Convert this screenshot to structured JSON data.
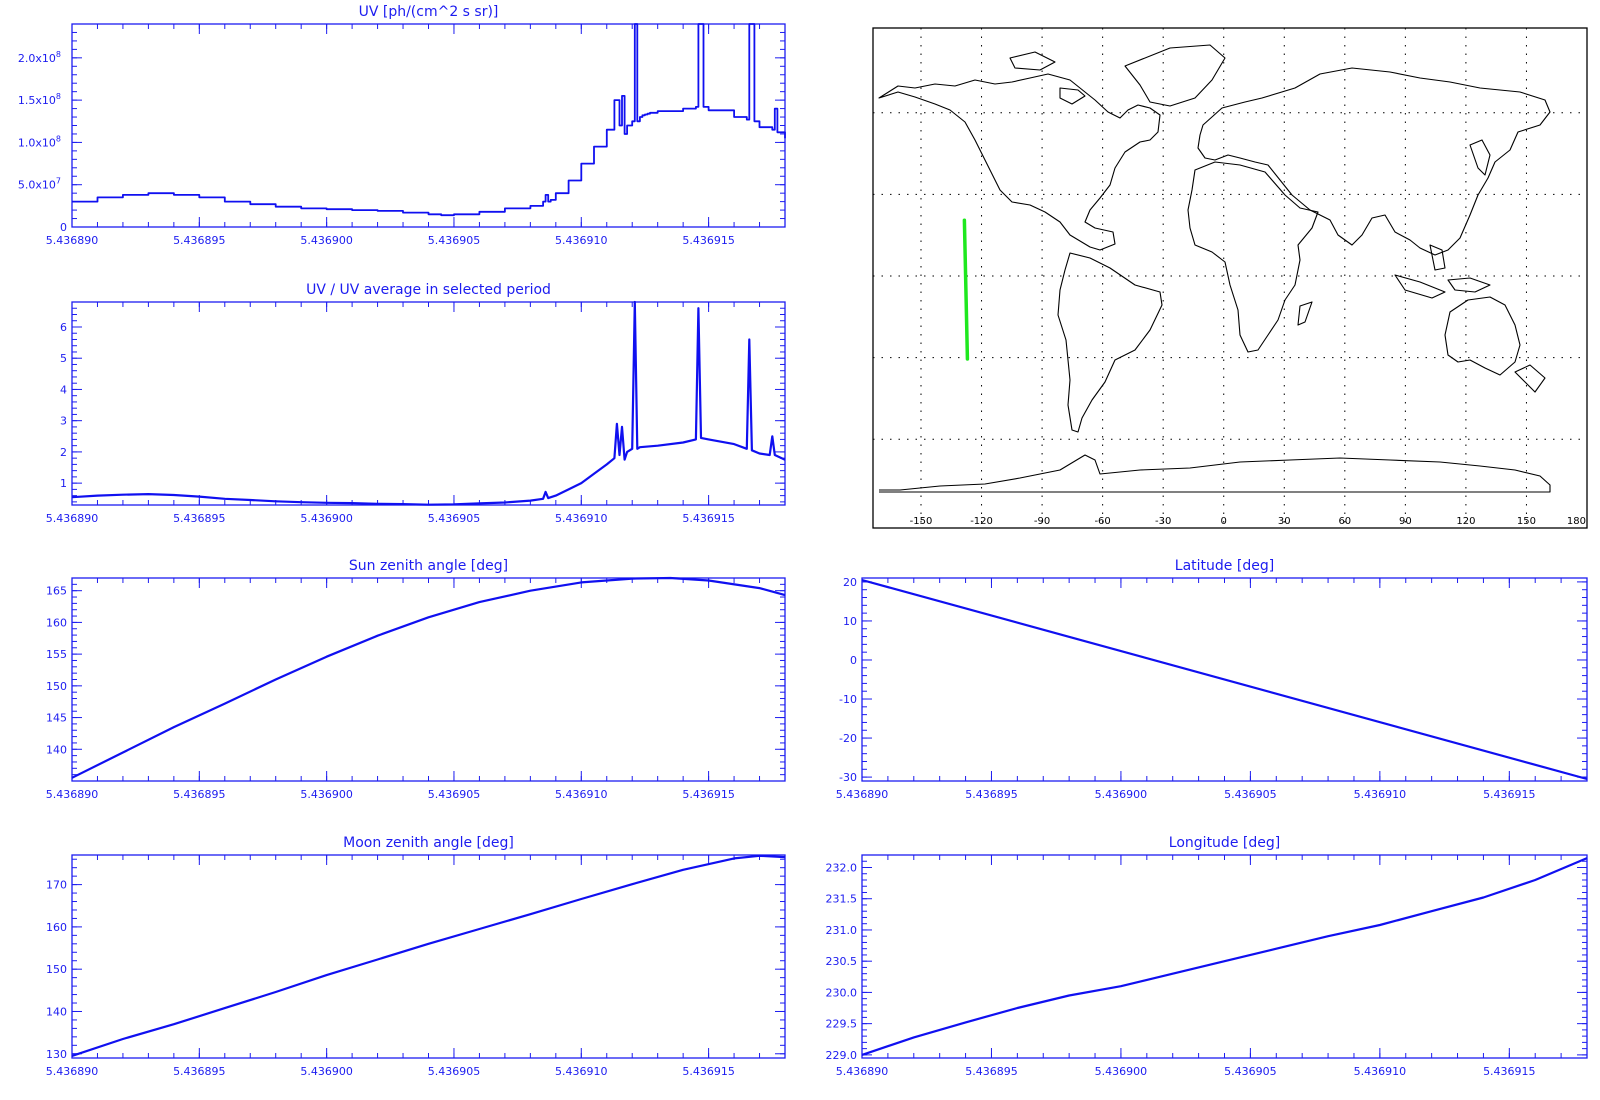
{
  "colors": {
    "axis": "#1c1cf0",
    "line": "#1010f0",
    "track": "#1ee81e",
    "coast": "#000000"
  },
  "chart_data": [
    {
      "id": "uv",
      "type": "line",
      "title": "UV [ph/(cm^2 s sr)]",
      "xlabel": "",
      "ylabel": "",
      "xlim": [
        5.43689,
        5.436918
      ],
      "ylim": [
        0,
        240000000
      ],
      "x_ticks": [
        "5.436890",
        "5.436895",
        "5.436900",
        "5.436905",
        "5.436910",
        "5.436915"
      ],
      "y_ticks": [
        {
          "value": 0,
          "mant": "0",
          "exp": ""
        },
        {
          "value": 50000000,
          "mant": "5.0x10",
          "exp": "7"
        },
        {
          "value": 100000000,
          "mant": "1.0x10",
          "exp": "8"
        },
        {
          "value": 150000000,
          "mant": "1.5x10",
          "exp": "8"
        },
        {
          "value": 200000000,
          "mant": "2.0x10",
          "exp": "8"
        }
      ],
      "step": true,
      "series": [
        {
          "x": [
            5.43689,
            5.436891,
            5.436892,
            5.436893,
            5.436894,
            5.436895,
            5.436896,
            5.436897,
            5.436898,
            5.436899,
            5.4369,
            5.436901,
            5.436902,
            5.436903,
            5.436904,
            5.4369045,
            5.436905,
            5.436906,
            5.436907,
            5.436908,
            5.4369085,
            5.4369086,
            5.4369087,
            5.4369088,
            5.436909,
            5.4369095,
            5.43691,
            5.4369105,
            5.436911,
            5.4369113,
            5.4369115,
            5.4369116,
            5.4369117,
            5.4369118,
            5.436912,
            5.4369121,
            5.4369122,
            5.4369123,
            5.4369124,
            5.4369125,
            5.4369126,
            5.4369127,
            5.436913,
            5.436914,
            5.4369145,
            5.4369146,
            5.4369147,
            5.4369148,
            5.436915,
            5.436916,
            5.4369165,
            5.4369166,
            5.4369167,
            5.4369168,
            5.436917,
            5.4369175,
            5.4369176,
            5.4369177,
            5.436918
          ],
          "y": [
            30000000,
            35000000,
            38000000,
            40000000,
            38000000,
            35000000,
            30000000,
            27000000,
            24000000,
            22000000,
            21000000,
            20000000,
            19000000,
            17000000,
            15000000,
            14000000,
            15000000,
            18000000,
            22000000,
            25000000,
            30000000,
            38000000,
            30000000,
            32000000,
            40000000,
            55000000,
            75000000,
            95000000,
            115000000,
            150000000,
            120000000,
            155000000,
            110000000,
            120000000,
            125000000,
            240000000,
            125000000,
            130000000,
            132000000,
            133000000,
            134000000,
            135000000,
            137000000,
            140000000,
            142000000,
            240000000,
            240000000,
            142000000,
            138000000,
            130000000,
            127000000,
            240000000,
            240000000,
            125000000,
            118000000,
            115000000,
            140000000,
            112000000,
            105000000
          ]
        }
      ]
    },
    {
      "id": "ratio",
      "type": "line",
      "title": "UV / UV average in selected period",
      "xlabel": "",
      "ylabel": "",
      "xlim": [
        5.43689,
        5.436918
      ],
      "ylim": [
        0.3,
        6.8
      ],
      "x_ticks": [
        "5.436890",
        "5.436895",
        "5.436900",
        "5.436905",
        "5.436910",
        "5.436915"
      ],
      "y_ticks": [
        {
          "value": 1,
          "mant": "1",
          "exp": ""
        },
        {
          "value": 2,
          "mant": "2",
          "exp": ""
        },
        {
          "value": 3,
          "mant": "3",
          "exp": ""
        },
        {
          "value": 4,
          "mant": "4",
          "exp": ""
        },
        {
          "value": 5,
          "mant": "5",
          "exp": ""
        },
        {
          "value": 6,
          "mant": "6",
          "exp": ""
        }
      ],
      "step": false,
      "series": [
        {
          "x": [
            5.43689,
            5.436891,
            5.436892,
            5.436893,
            5.436894,
            5.436895,
            5.436896,
            5.436897,
            5.436898,
            5.436899,
            5.4369,
            5.436901,
            5.436902,
            5.436903,
            5.436904,
            5.436905,
            5.436906,
            5.436907,
            5.436908,
            5.4369085,
            5.4369086,
            5.4369087,
            5.436909,
            5.4369095,
            5.43691,
            5.4369105,
            5.436911,
            5.4369113,
            5.4369114,
            5.4369115,
            5.4369116,
            5.4369117,
            5.4369118,
            5.436912,
            5.4369121,
            5.4369122,
            5.4369123,
            5.436913,
            5.436914,
            5.4369145,
            5.4369146,
            5.4369147,
            5.436915,
            5.436916,
            5.4369165,
            5.4369166,
            5.4369167,
            5.436917,
            5.4369174,
            5.4369175,
            5.4369176,
            5.436918
          ],
          "y": [
            0.55,
            0.6,
            0.63,
            0.65,
            0.62,
            0.57,
            0.5,
            0.46,
            0.42,
            0.39,
            0.37,
            0.36,
            0.34,
            0.33,
            0.31,
            0.32,
            0.35,
            0.38,
            0.44,
            0.5,
            0.72,
            0.52,
            0.6,
            0.8,
            1.0,
            1.3,
            1.6,
            1.8,
            2.9,
            1.9,
            2.8,
            1.75,
            2.0,
            2.1,
            6.8,
            2.1,
            2.15,
            2.2,
            2.3,
            2.4,
            6.6,
            2.45,
            2.4,
            2.25,
            2.1,
            5.6,
            2.05,
            1.95,
            1.9,
            2.5,
            1.9,
            1.75
          ]
        }
      ]
    },
    {
      "id": "sza",
      "type": "line",
      "title": "Sun zenith angle [deg]",
      "xlabel": "",
      "ylabel": "",
      "xlim": [
        5.43689,
        5.436918
      ],
      "ylim": [
        135,
        167
      ],
      "x_ticks": [
        "5.436890",
        "5.436895",
        "5.436900",
        "5.436905",
        "5.436910",
        "5.436915"
      ],
      "y_ticks": [
        {
          "value": 140,
          "mant": "140",
          "exp": ""
        },
        {
          "value": 145,
          "mant": "145",
          "exp": ""
        },
        {
          "value": 150,
          "mant": "150",
          "exp": ""
        },
        {
          "value": 155,
          "mant": "155",
          "exp": ""
        },
        {
          "value": 160,
          "mant": "160",
          "exp": ""
        },
        {
          "value": 165,
          "mant": "165",
          "exp": ""
        }
      ],
      "step": false,
      "series": [
        {
          "x": [
            5.43689,
            5.436892,
            5.436894,
            5.436896,
            5.436898,
            5.4369,
            5.436902,
            5.436904,
            5.436906,
            5.436908,
            5.43691,
            5.436912,
            5.4369135,
            5.436915,
            5.436917,
            5.436918
          ],
          "y": [
            135.5,
            139.5,
            143.5,
            147.2,
            151.0,
            154.6,
            157.9,
            160.8,
            163.2,
            165.0,
            166.3,
            166.9,
            167.0,
            166.6,
            165.4,
            164.3
          ]
        }
      ]
    },
    {
      "id": "lat",
      "type": "line",
      "title": "Latitude [deg]",
      "xlabel": "",
      "ylabel": "",
      "xlim": [
        5.43689,
        5.436918
      ],
      "ylim": [
        -31,
        21
      ],
      "x_ticks": [
        "5.436890",
        "5.436895",
        "5.436900",
        "5.436905",
        "5.436910",
        "5.436915"
      ],
      "y_ticks": [
        {
          "value": -30,
          "mant": "-30",
          "exp": ""
        },
        {
          "value": -20,
          "mant": "-20",
          "exp": ""
        },
        {
          "value": -10,
          "mant": "-10",
          "exp": ""
        },
        {
          "value": 0,
          "mant": "0",
          "exp": ""
        },
        {
          "value": 10,
          "mant": "10",
          "exp": ""
        },
        {
          "value": 20,
          "mant": "20",
          "exp": ""
        }
      ],
      "step": false,
      "series": [
        {
          "x": [
            5.43689,
            5.436918
          ],
          "y": [
            20.5,
            -30.5
          ]
        }
      ]
    },
    {
      "id": "mza",
      "type": "line",
      "title": "Moon zenith angle [deg]",
      "xlabel": "",
      "ylabel": "",
      "xlim": [
        5.43689,
        5.436918
      ],
      "ylim": [
        129,
        177
      ],
      "x_ticks": [
        "5.436890",
        "5.436895",
        "5.436900",
        "5.436905",
        "5.436910",
        "5.436915"
      ],
      "y_ticks": [
        {
          "value": 130,
          "mant": "130",
          "exp": ""
        },
        {
          "value": 140,
          "mant": "140",
          "exp": ""
        },
        {
          "value": 150,
          "mant": "150",
          "exp": ""
        },
        {
          "value": 160,
          "mant": "160",
          "exp": ""
        },
        {
          "value": 170,
          "mant": "170",
          "exp": ""
        }
      ],
      "step": false,
      "series": [
        {
          "x": [
            5.43689,
            5.436892,
            5.436894,
            5.436896,
            5.436898,
            5.4369,
            5.436902,
            5.436904,
            5.436906,
            5.436908,
            5.43691,
            5.436912,
            5.436914,
            5.436916,
            5.436917,
            5.436918
          ],
          "y": [
            129.5,
            133.5,
            137.0,
            140.8,
            144.6,
            148.6,
            152.3,
            156.0,
            159.5,
            163.0,
            166.6,
            170.1,
            173.5,
            176.2,
            176.8,
            176.5
          ]
        }
      ]
    },
    {
      "id": "lon",
      "type": "line",
      "title": "Longitude [deg]",
      "xlabel": "",
      "ylabel": "",
      "xlim": [
        5.43689,
        5.436918
      ],
      "ylim": [
        228.95,
        232.2
      ],
      "x_ticks": [
        "5.436890",
        "5.436895",
        "5.436900",
        "5.436905",
        "5.436910",
        "5.436915"
      ],
      "y_ticks": [
        {
          "value": 229.0,
          "mant": "229.0",
          "exp": ""
        },
        {
          "value": 229.5,
          "mant": "229.5",
          "exp": ""
        },
        {
          "value": 230.0,
          "mant": "230.0",
          "exp": ""
        },
        {
          "value": 230.5,
          "mant": "230.5",
          "exp": ""
        },
        {
          "value": 231.0,
          "mant": "231.0",
          "exp": ""
        },
        {
          "value": 231.5,
          "mant": "231.5",
          "exp": ""
        },
        {
          "value": 232.0,
          "mant": "232.0",
          "exp": ""
        }
      ],
      "step": false,
      "series": [
        {
          "x": [
            5.43689,
            5.436892,
            5.436894,
            5.436896,
            5.436898,
            5.4369,
            5.436902,
            5.436904,
            5.436906,
            5.436908,
            5.43691,
            5.436912,
            5.436914,
            5.436916,
            5.436918
          ],
          "y": [
            229.0,
            229.28,
            229.52,
            229.75,
            229.95,
            230.1,
            230.3,
            230.5,
            230.7,
            230.9,
            231.08,
            231.3,
            231.52,
            231.8,
            232.15
          ]
        }
      ]
    }
  ],
  "map": {
    "type": "map",
    "lon_ticks": [
      "-150",
      "-120",
      "-90",
      "-60",
      "-30",
      "0",
      "30",
      "60",
      "90",
      "120",
      "150",
      "180"
    ],
    "lon_values": [
      -150,
      -120,
      -90,
      -60,
      -30,
      0,
      30,
      60,
      90,
      120,
      150,
      180
    ],
    "grid_lon": [
      -150,
      -120,
      -90,
      -60,
      -30,
      0,
      30,
      60,
      90,
      120,
      150
    ],
    "grid_lat": [
      60,
      30,
      0,
      -30,
      -60
    ],
    "track": {
      "lon_start": -128.5,
      "lat_start": 20.5,
      "lon_end": -127.0,
      "lat_end": -30.5
    }
  }
}
